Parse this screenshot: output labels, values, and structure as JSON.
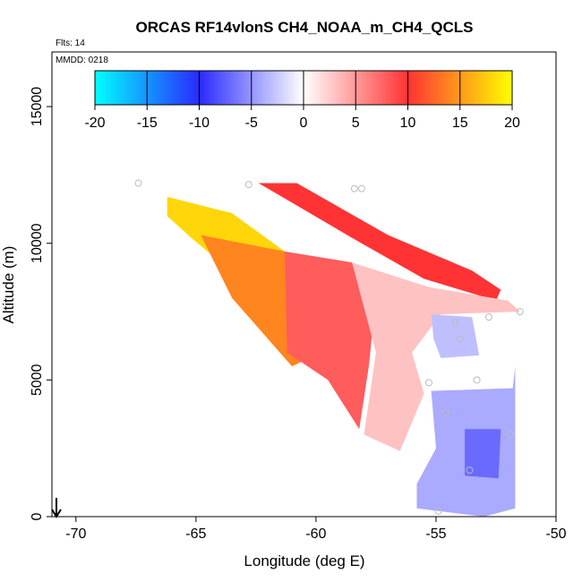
{
  "chart_data": {
    "type": "heatmap",
    "title": "ORCAS RF14vlonS CH4_NOAA_m_CH4_QCLS",
    "flights_note": "Flts: 14",
    "date_note": "MMDD: 0218",
    "xlabel": "Longitude (deg E)",
    "ylabel": "Altitude (m)",
    "xlim": [
      -71,
      -50
    ],
    "ylim": [
      0,
      17000
    ],
    "x_ticks": [
      "-70",
      "-65",
      "-60",
      "-55",
      "-50"
    ],
    "y_ticks": [
      "0",
      "5000",
      "10000",
      "15000"
    ],
    "x_tick_values": [
      -70,
      -65,
      -60,
      -55,
      -50
    ],
    "y_tick_values": [
      0,
      5000,
      10000,
      15000
    ],
    "colorbar": {
      "range": [
        -20,
        20
      ],
      "ticks": [
        "-20",
        "-15",
        "-10",
        "-5",
        "0",
        "5",
        "10",
        "15",
        "20"
      ],
      "tick_values": [
        -20,
        -15,
        -10,
        -5,
        0,
        5,
        10,
        15,
        20
      ],
      "colors_low_to_high": [
        "#00ffff",
        "#2a2aff",
        "#ffffff",
        "#ff3333",
        "#ffff00"
      ]
    },
    "regions": [
      {
        "name": "high-yellow-band",
        "value": 18,
        "polygon": [
          [
            -66.2,
            11700
          ],
          [
            -63.5,
            11100
          ],
          [
            -61.3,
            9700
          ],
          [
            -62.6,
            8300
          ],
          [
            -65.2,
            10200
          ],
          [
            -66.2,
            11000
          ]
        ]
      },
      {
        "name": "orange-core",
        "value": 14,
        "polygon": [
          [
            -64.8,
            10300
          ],
          [
            -61.3,
            9700
          ],
          [
            -59.0,
            8300
          ],
          [
            -59.8,
            6000
          ],
          [
            -61.0,
            5500
          ],
          [
            -63.5,
            8000
          ]
        ]
      },
      {
        "name": "red-core",
        "value": 8,
        "polygon": [
          [
            -61.3,
            9700
          ],
          [
            -58.5,
            9300
          ],
          [
            -57.5,
            8000
          ],
          [
            -57.8,
            5500
          ],
          [
            -58.2,
            3200
          ],
          [
            -59.5,
            5000
          ],
          [
            -61.2,
            6000
          ]
        ]
      },
      {
        "name": "upper-red-streak",
        "value": 10,
        "polygon": [
          [
            -62.4,
            12200
          ],
          [
            -60.8,
            12200
          ],
          [
            -57.0,
            10300
          ],
          [
            -53.5,
            9000
          ],
          [
            -52.3,
            8300
          ],
          [
            -52.5,
            7900
          ],
          [
            -55.5,
            8700
          ],
          [
            -58.5,
            10200
          ],
          [
            -61.8,
            11900
          ]
        ]
      },
      {
        "name": "pink-fringe",
        "value": 3,
        "polygon": [
          [
            -58.5,
            9300
          ],
          [
            -55.3,
            8400
          ],
          [
            -52.0,
            7900
          ],
          [
            -51.5,
            7500
          ],
          [
            -54.8,
            7400
          ],
          [
            -56.0,
            6000
          ],
          [
            -55.5,
            4500
          ],
          [
            -56.5,
            2400
          ],
          [
            -58.0,
            3000
          ],
          [
            -57.5,
            6000
          ]
        ]
      },
      {
        "name": "mid-blue-patch",
        "value": -3,
        "polygon": [
          [
            -55.2,
            7400
          ],
          [
            -53.5,
            7300
          ],
          [
            -53.2,
            5900
          ],
          [
            -54.8,
            5800
          ],
          [
            -55.1,
            6500
          ]
        ]
      },
      {
        "name": "lower-blue-block",
        "value": -4,
        "polygon": [
          [
            -55.2,
            4600
          ],
          [
            -51.8,
            4700
          ],
          [
            -51.7,
            5500
          ],
          [
            -51.7,
            300
          ],
          [
            -53.0,
            0
          ],
          [
            -55.8,
            300
          ],
          [
            -55.8,
            1200
          ],
          [
            -55.0,
            2500
          ]
        ]
      },
      {
        "name": "lower-blue-core",
        "value": -7,
        "polygon": [
          [
            -53.8,
            3200
          ],
          [
            -52.3,
            3200
          ],
          [
            -52.4,
            1400
          ],
          [
            -53.8,
            1500
          ]
        ]
      }
    ],
    "points": [
      {
        "x": -67.4,
        "y": 12200
      },
      {
        "x": -62.8,
        "y": 12150
      },
      {
        "x": -58.4,
        "y": 12000
      },
      {
        "x": -58.1,
        "y": 12000
      },
      {
        "x": -52.8,
        "y": 7300
      },
      {
        "x": -51.5,
        "y": 7500
      },
      {
        "x": -54.2,
        "y": 7100
      },
      {
        "x": -54.0,
        "y": 6500
      },
      {
        "x": -55.3,
        "y": 4900
      },
      {
        "x": -53.3,
        "y": 5000
      },
      {
        "x": -54.6,
        "y": 3800
      },
      {
        "x": -51.9,
        "y": 3000
      },
      {
        "x": -53.6,
        "y": 1700
      },
      {
        "x": -54.9,
        "y": 200
      }
    ]
  }
}
